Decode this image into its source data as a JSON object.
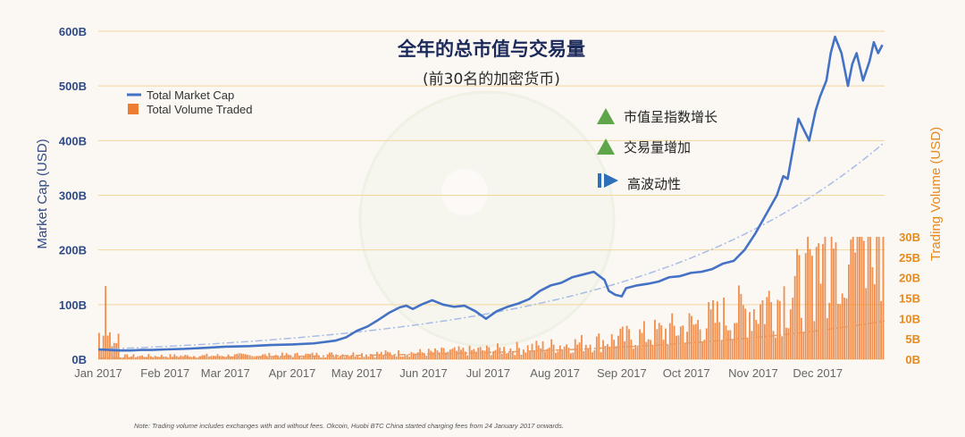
{
  "chart_data": {
    "type": "line",
    "title": "全年的总市值与交易量",
    "subtitle": "(前30名的加密货币)",
    "ylabel": "Market Cap (USD)",
    "y2label": "Trading Volume (USD)",
    "ylim": [
      0,
      600
    ],
    "y2lim": [
      0,
      30
    ],
    "y_ticks": [
      "0B",
      "100B",
      "200B",
      "300B",
      "400B",
      "500B",
      "600B"
    ],
    "y2_ticks": [
      "0B",
      "5B",
      "10B",
      "15B",
      "20B",
      "25B",
      "30B"
    ],
    "x_ticks": [
      "Jan 2017",
      "Feb 2017",
      "Mar 2017",
      "Apr 2017",
      "May 2017",
      "Jun 2017",
      "Jul 2017",
      "Aug 2017",
      "Sep 2017",
      "Oct 2017",
      "Nov 2017",
      "Dec 2017"
    ],
    "xlim_days": [
      0,
      365
    ],
    "grid": true,
    "legend_position": "top-left",
    "series": [
      {
        "name": "Total Market Cap",
        "type": "line",
        "axis": "left",
        "color": "#4472c4",
        "x_day": [
          0,
          5,
          10,
          15,
          20,
          25,
          31,
          40,
          50,
          59,
          70,
          80,
          90,
          100,
          110,
          115,
          120,
          125,
          130,
          135,
          140,
          143,
          146,
          150,
          155,
          160,
          165,
          170,
          175,
          180,
          185,
          190,
          195,
          200,
          205,
          210,
          215,
          220,
          225,
          230,
          235,
          237,
          240,
          243,
          245,
          250,
          255,
          260,
          265,
          270,
          275,
          280,
          285,
          290,
          295,
          300,
          305,
          310,
          315,
          318,
          320,
          325,
          330,
          333,
          335,
          338,
          340,
          342,
          345,
          348,
          350,
          352,
          355,
          358,
          360,
          362,
          364
        ],
        "values": [
          18,
          17,
          16,
          16,
          17,
          17,
          18,
          19,
          21,
          23,
          24,
          26,
          27,
          29,
          34,
          40,
          52,
          60,
          72,
          85,
          95,
          98,
          92,
          100,
          108,
          100,
          96,
          98,
          88,
          74,
          88,
          96,
          102,
          110,
          125,
          135,
          140,
          150,
          155,
          160,
          145,
          125,
          118,
          115,
          130,
          135,
          138,
          142,
          150,
          152,
          158,
          160,
          165,
          175,
          180,
          200,
          230,
          265,
          300,
          335,
          330,
          440,
          400,
          455,
          480,
          510,
          560,
          590,
          560,
          500,
          540,
          560,
          510,
          545,
          580,
          560,
          575
        ]
      },
      {
        "name": "Total Volume Traded",
        "type": "bar",
        "axis": "right",
        "color": "#ed7d31"
      }
    ],
    "annotations": [
      "市值呈指数增长",
      "交易量增加",
      "高波动性"
    ],
    "note": "Note:  Trading volume includes exchanges with and without fees. Okcoin, Huobi BTC China started charging fees from 24 January 2017 onwards."
  },
  "colors": {
    "market_cap": "#4472c4",
    "volume": "#ed7d31",
    "left_axis_text": "#2e4a86",
    "right_axis_text": "#e58a1d",
    "grid": "#f2d69b",
    "up_arrow": "#5fa64a",
    "play_icon": "#2e6fba",
    "title": "#1b2a5a"
  },
  "annotation_icons": [
    "triangle-up-icon",
    "triangle-up-icon",
    "play-bar-icon"
  ]
}
